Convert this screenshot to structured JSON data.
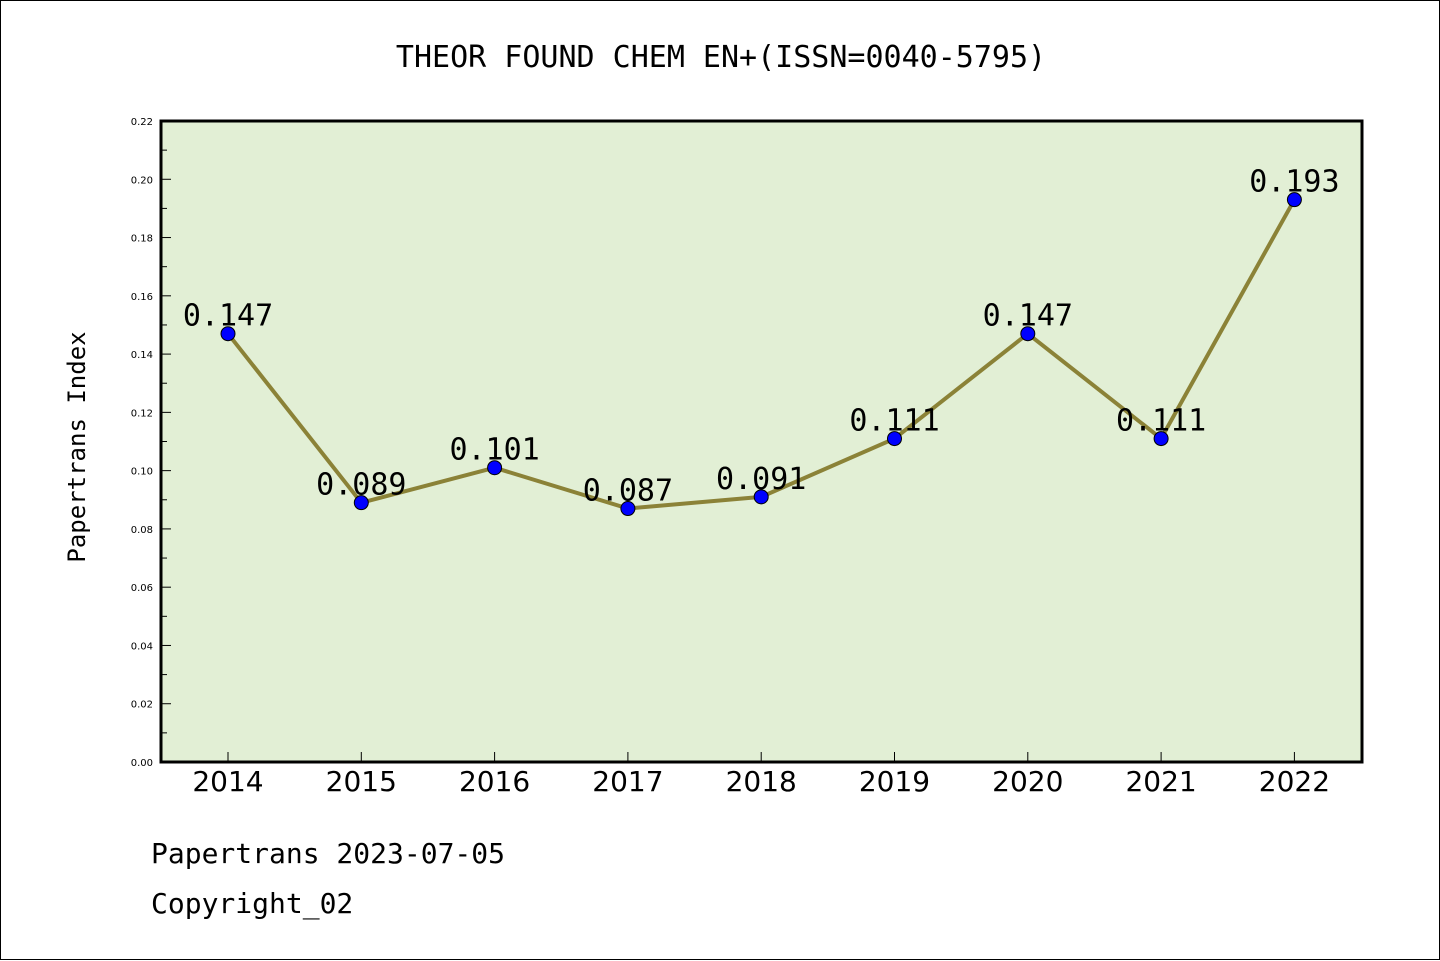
{
  "chart_data": {
    "type": "line",
    "title": "THEOR FOUND CHEM EN+(ISSN=0040-5795)",
    "xlabel": "",
    "ylabel": "Papertrans Index",
    "categories": [
      "2014",
      "2015",
      "2016",
      "2017",
      "2018",
      "2019",
      "2020",
      "2021",
      "2022"
    ],
    "series": [
      {
        "values": [
          0.147,
          0.089,
          0.101,
          0.087,
          0.091,
          0.111,
          0.147,
          0.111,
          0.193
        ],
        "labels": [
          "0.147",
          "0.089",
          "0.101",
          "0.087",
          "0.091",
          "0.111",
          "0.147",
          "0.111",
          "0.193"
        ]
      }
    ],
    "ylim": [
      0,
      0.22
    ],
    "yticks": [
      "0.00",
      "0.02",
      "0.04",
      "0.06",
      "0.08",
      "0.10",
      "0.12",
      "0.14",
      "0.16",
      "0.18",
      "0.20",
      "0.22"
    ],
    "grid": false,
    "colors": {
      "plot_background": "#e2efd5",
      "line": "#8b8237",
      "marker": "#0000ff"
    }
  },
  "footer": {
    "line1": "Papertrans 2023-07-05",
    "line2": "Copyright_02"
  }
}
